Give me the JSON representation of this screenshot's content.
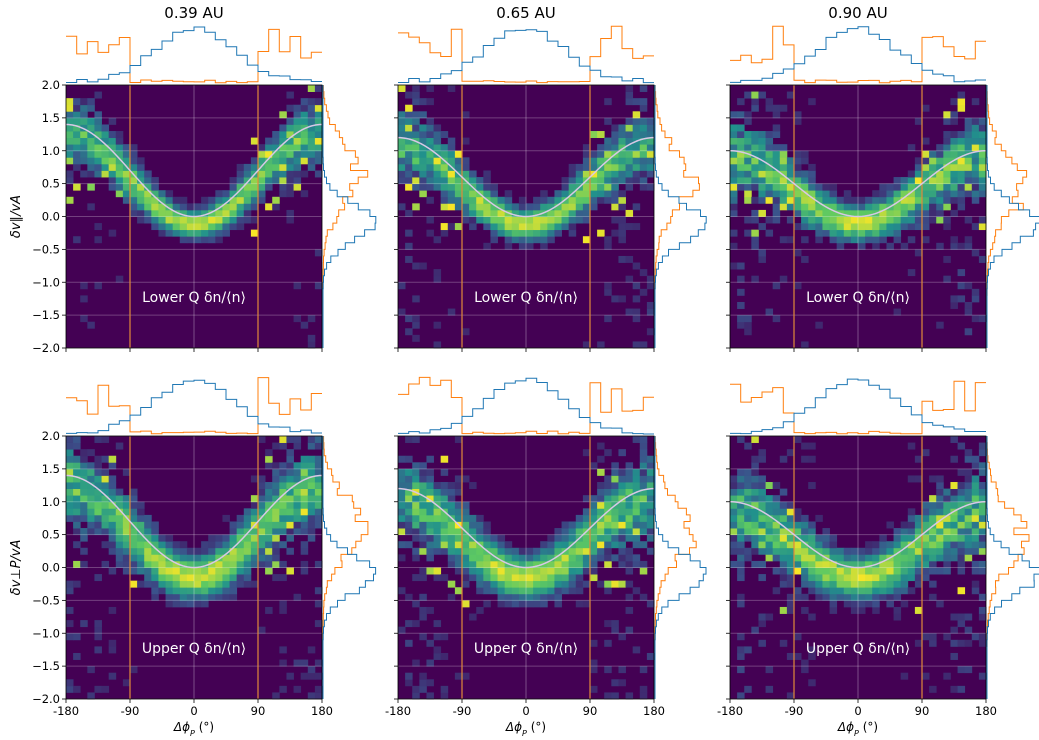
{
  "figure": {
    "column_titles": [
      "0.39 AU",
      "0.65 AU",
      "0.90 AU"
    ],
    "row_ylabels": [
      "δv∥/vA",
      "δv⊥P/vA"
    ],
    "xlabel": "Δϕ",
    "xlabel_sub": "P",
    "xlabel_unit": " (°)",
    "panel_labels": [
      "Lower Q δn/⟨n⟩",
      "Upper Q δn/⟨n⟩"
    ],
    "colors": {
      "heat_bg": "#440154",
      "marginal_near_peak": "#1f77b4",
      "marginal_outer": "#ff7f0e",
      "reference_lines": "#e08a3a",
      "curve": "#d8c8e6",
      "label_text": "#ffffff"
    }
  },
  "chart_data": [
    {
      "type": "heatmap",
      "row": 0,
      "col": 0,
      "title": "0.39 AU",
      "panel_label": "Lower Q δn/⟨n⟩",
      "xlabel": "Δϕ_P (°)",
      "ylabel": "δv∥/vA",
      "xlim": [
        -180,
        180
      ],
      "ylim": [
        -2.0,
        2.0
      ],
      "xticks": [
        -180,
        -90,
        0,
        90,
        180
      ],
      "yticks": [
        -2.0,
        -1.5,
        -1.0,
        -0.5,
        0.0,
        0.5,
        1.0,
        1.5,
        2.0
      ],
      "grid": true,
      "vlines": [
        -90,
        90
      ],
      "curve": {
        "amplitude": 1.4
      },
      "ridge": {
        "spread": 0.14,
        "offset": -0.12,
        "noise": 0.25
      },
      "seed": 11
    },
    {
      "type": "heatmap",
      "row": 0,
      "col": 1,
      "title": "0.65 AU",
      "panel_label": "Lower Q δn/⟨n⟩",
      "xlabel": "Δϕ_P (°)",
      "ylabel": "",
      "xlim": [
        -180,
        180
      ],
      "ylim": [
        -2.0,
        2.0
      ],
      "xticks": [
        -180,
        -90,
        0,
        90,
        180
      ],
      "yticks": [
        -2.0,
        -1.5,
        -1.0,
        -0.5,
        0.0,
        0.5,
        1.0,
        1.5,
        2.0
      ],
      "grid": true,
      "vlines": [
        -90,
        90
      ],
      "curve": {
        "amplitude": 1.2
      },
      "ridge": {
        "spread": 0.16,
        "offset": -0.12,
        "noise": 0.3
      },
      "seed": 23
    },
    {
      "type": "heatmap",
      "row": 0,
      "col": 2,
      "title": "0.90 AU",
      "panel_label": "Lower Q δn/⟨n⟩",
      "xlabel": "Δϕ_P (°)",
      "ylabel": "",
      "xlim": [
        -180,
        180
      ],
      "ylim": [
        -2.0,
        2.0
      ],
      "xticks": [
        -180,
        -90,
        0,
        90,
        180
      ],
      "yticks": [
        -2.0,
        -1.5,
        -1.0,
        -0.5,
        0.0,
        0.5,
        1.0,
        1.5,
        2.0
      ],
      "grid": true,
      "vlines": [
        -90,
        90
      ],
      "curve": {
        "amplitude": 1.0
      },
      "ridge": {
        "spread": 0.18,
        "offset": -0.1,
        "noise": 0.35
      },
      "seed": 37
    },
    {
      "type": "heatmap",
      "row": 1,
      "col": 0,
      "title": "",
      "panel_label": "Upper Q δn/⟨n⟩",
      "xlabel": "Δϕ_P (°)",
      "ylabel": "δv⊥P/vA",
      "xlim": [
        -180,
        180
      ],
      "ylim": [
        -2.0,
        2.0
      ],
      "xticks": [
        -180,
        -90,
        0,
        90,
        180
      ],
      "yticks": [
        -2.0,
        -1.5,
        -1.0,
        -0.5,
        0.0,
        0.5,
        1.0,
        1.5,
        2.0
      ],
      "grid": true,
      "vlines": [
        -90,
        90
      ],
      "curve": {
        "amplitude": 1.4
      },
      "ridge": {
        "spread": 0.22,
        "offset": -0.15,
        "noise": 0.3
      },
      "seed": 41
    },
    {
      "type": "heatmap",
      "row": 1,
      "col": 1,
      "title": "",
      "panel_label": "Upper Q δn/⟨n⟩",
      "xlabel": "Δϕ_P (°)",
      "ylabel": "",
      "xlim": [
        -180,
        180
      ],
      "ylim": [
        -2.0,
        2.0
      ],
      "xticks": [
        -180,
        -90,
        0,
        90,
        180
      ],
      "yticks": [
        -2.0,
        -1.5,
        -1.0,
        -0.5,
        0.0,
        0.5,
        1.0,
        1.5,
        2.0
      ],
      "grid": true,
      "vlines": [
        -90,
        90
      ],
      "curve": {
        "amplitude": 1.2
      },
      "ridge": {
        "spread": 0.22,
        "offset": -0.15,
        "noise": 0.32
      },
      "seed": 53
    },
    {
      "type": "heatmap",
      "row": 1,
      "col": 2,
      "title": "",
      "panel_label": "Upper Q δn/⟨n⟩",
      "xlabel": "Δϕ_P (°)",
      "ylabel": "",
      "xlim": [
        -180,
        180
      ],
      "ylim": [
        -2.0,
        2.0
      ],
      "xticks": [
        -180,
        -90,
        0,
        90,
        180
      ],
      "yticks": [
        -2.0,
        -1.5,
        -1.0,
        -0.5,
        0.0,
        0.5,
        1.0,
        1.5,
        2.0
      ],
      "grid": true,
      "vlines": [
        -90,
        90
      ],
      "curve": {
        "amplitude": 1.0
      },
      "ridge": {
        "spread": 0.22,
        "offset": -0.15,
        "noise": 0.35
      },
      "seed": 67
    }
  ]
}
